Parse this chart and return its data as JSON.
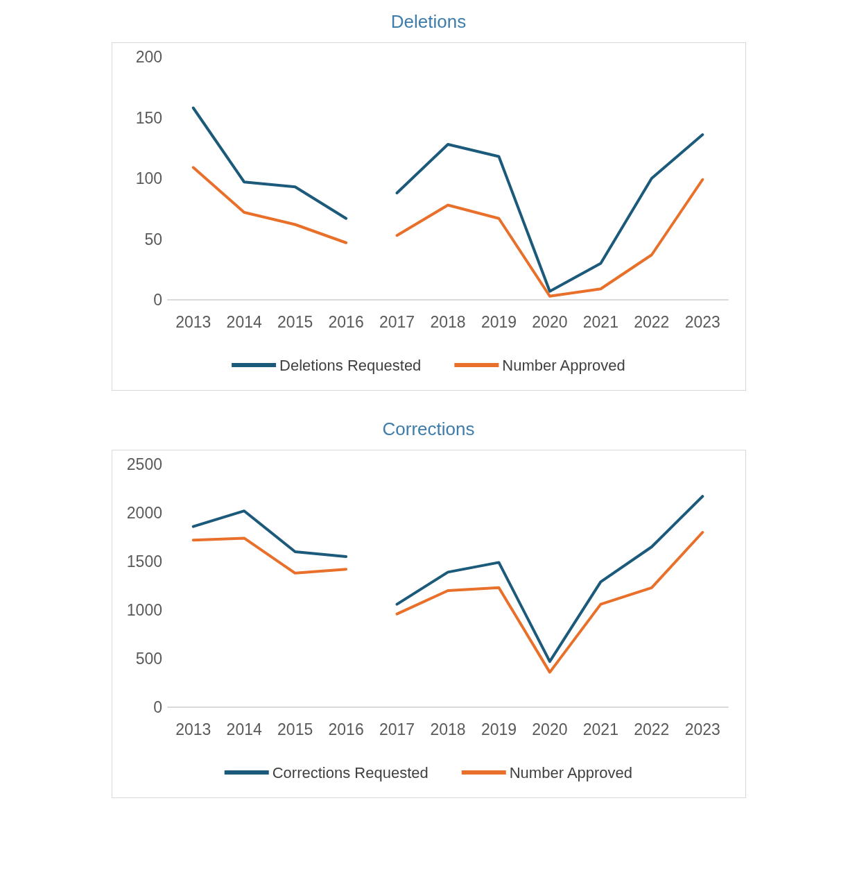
{
  "chart_data": [
    {
      "type": "line",
      "title": "Deletions",
      "categories": [
        "2013",
        "2014",
        "2015",
        "2016",
        "2017",
        "2018",
        "2019",
        "2020",
        "2021",
        "2022",
        "2023"
      ],
      "series": [
        {
          "name": "Deletions Requested",
          "color": "#1b5a7a",
          "values": [
            158,
            97,
            93,
            67,
            null,
            null,
            null,
            null,
            null,
            null,
            null
          ]
        },
        {
          "name": "Number Approved",
          "color": "#e8702a",
          "values": [
            109,
            72,
            62,
            47,
            null,
            null,
            null,
            null,
            null,
            null,
            null
          ]
        },
        {
          "color": "#1b5a7a",
          "values": [
            null,
            null,
            null,
            null,
            88,
            128,
            118,
            7,
            30,
            100,
            136
          ]
        },
        {
          "color": "#e8702a",
          "values": [
            null,
            null,
            null,
            null,
            53,
            78,
            67,
            3,
            9,
            37,
            99
          ]
        }
      ],
      "ylim": [
        0,
        200
      ],
      "yticks": [
        0,
        50,
        100,
        150,
        200
      ],
      "grid": false,
      "legend": "bottom",
      "marker": "none",
      "line_style": "solid"
    },
    {
      "type": "line",
      "title": "Corrections",
      "categories": [
        "2013",
        "2014",
        "2015",
        "2016",
        "2017",
        "2018",
        "2019",
        "2020",
        "2021",
        "2022",
        "2023"
      ],
      "series": [
        {
          "name": "Corrections Requested",
          "color": "#1b5a7a",
          "values": [
            1860,
            2020,
            1600,
            1550,
            null,
            null,
            null,
            null,
            null,
            null,
            null
          ]
        },
        {
          "name": "Number Approved",
          "color": "#e8702a",
          "values": [
            1720,
            1740,
            1380,
            1420,
            null,
            null,
            null,
            null,
            null,
            null,
            null
          ]
        },
        {
          "color": "#1b5a7a",
          "values": [
            null,
            null,
            null,
            null,
            1060,
            1390,
            1490,
            470,
            1290,
            1650,
            2170
          ]
        },
        {
          "color": "#e8702a",
          "values": [
            null,
            null,
            null,
            null,
            960,
            1200,
            1230,
            360,
            1060,
            1230,
            1800
          ]
        }
      ],
      "ylim": [
        0,
        2500
      ],
      "yticks": [
        0,
        500,
        1000,
        1500,
        2000,
        2500
      ],
      "grid": false,
      "legend": "bottom",
      "marker": "none",
      "line_style": "solid"
    }
  ]
}
